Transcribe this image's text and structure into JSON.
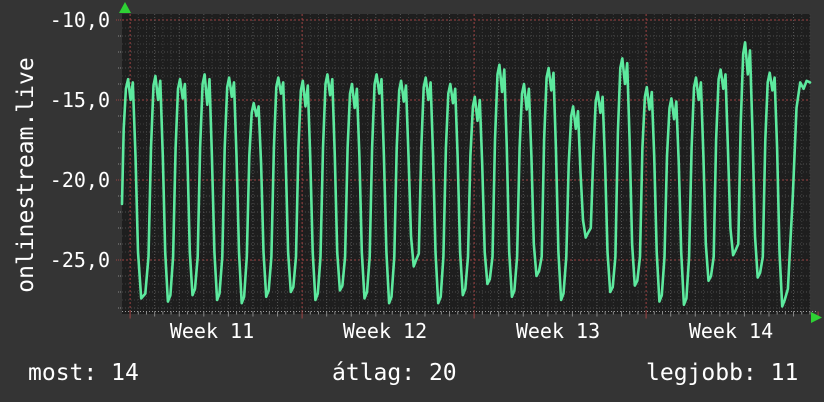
{
  "page": {
    "background": "#343434"
  },
  "chart_data": {
    "type": "line",
    "title": "onlinestream.live",
    "xlabel": "",
    "ylabel": "",
    "grid": true,
    "legend_position": "none",
    "ylim": [
      -28.3,
      -9.6
    ],
    "xlim_days": [
      0,
      28
    ],
    "y_ticks": [
      {
        "value": -10,
        "label": "-10,0"
      },
      {
        "value": -15,
        "label": "-15,0"
      },
      {
        "value": -20,
        "label": "-20,0"
      },
      {
        "value": -25,
        "label": "-25,0"
      }
    ],
    "x_week_labels": [
      "Week 11",
      "Week 12",
      "Week 13",
      "Week 14"
    ],
    "x_week_boundaries_days": [
      0.33,
      7.35,
      14.37,
      21.39,
      28.41
    ],
    "line_color": "#5de99e",
    "axis_arrow_color": "#2ed134",
    "major_grid_color": "#9f4343",
    "minor_grid_color": "#3e3e3e",
    "day_grid_color": "#565656",
    "plot_bg": "#1e1e1e",
    "stats": [
      {
        "label": "most:",
        "value": "14"
      },
      {
        "label": "átlag:",
        "value": "20"
      },
      {
        "label": "legjobb:",
        "value": "11"
      }
    ],
    "series": [
      {
        "name": "onlinestream.live",
        "color": "#5de99e",
        "points": [
          [
            0.0,
            -21.5
          ],
          [
            0.07,
            -16.8
          ],
          [
            0.16,
            -14.3
          ],
          [
            0.25,
            -13.7
          ],
          [
            0.35,
            -15.0
          ],
          [
            0.44,
            -13.9
          ],
          [
            0.55,
            -18.5
          ],
          [
            0.65,
            -24.5
          ],
          [
            0.78,
            -27.4
          ],
          [
            0.95,
            -27.1
          ],
          [
            1.08,
            -24.8
          ],
          [
            1.18,
            -18.0
          ],
          [
            1.28,
            -14.1
          ],
          [
            1.36,
            -13.5
          ],
          [
            1.47,
            -15.0
          ],
          [
            1.56,
            -13.8
          ],
          [
            1.66,
            -18.5
          ],
          [
            1.76,
            -24.5
          ],
          [
            1.87,
            -27.6
          ],
          [
            1.97,
            -27.2
          ],
          [
            2.08,
            -24.8
          ],
          [
            2.18,
            -18.0
          ],
          [
            2.28,
            -14.3
          ],
          [
            2.36,
            -13.7
          ],
          [
            2.47,
            -14.9
          ],
          [
            2.56,
            -14.0
          ],
          [
            2.66,
            -18.5
          ],
          [
            2.76,
            -24.5
          ],
          [
            2.87,
            -27.2
          ],
          [
            2.97,
            -26.8
          ],
          [
            3.08,
            -24.8
          ],
          [
            3.18,
            -18.0
          ],
          [
            3.28,
            -14.0
          ],
          [
            3.36,
            -13.4
          ],
          [
            3.47,
            -15.3
          ],
          [
            3.56,
            -13.7
          ],
          [
            3.66,
            -18.5
          ],
          [
            3.76,
            -24.5
          ],
          [
            3.87,
            -27.5
          ],
          [
            3.97,
            -27.1
          ],
          [
            4.08,
            -24.8
          ],
          [
            4.18,
            -18.0
          ],
          [
            4.28,
            -14.2
          ],
          [
            4.36,
            -13.6
          ],
          [
            4.47,
            -14.8
          ],
          [
            4.56,
            -13.9
          ],
          [
            4.66,
            -18.5
          ],
          [
            4.76,
            -24.5
          ],
          [
            4.87,
            -27.7
          ],
          [
            4.97,
            -27.3
          ],
          [
            5.08,
            -24.8
          ],
          [
            5.18,
            -18.5
          ],
          [
            5.28,
            -15.8
          ],
          [
            5.36,
            -15.2
          ],
          [
            5.47,
            -16.0
          ],
          [
            5.56,
            -15.4
          ],
          [
            5.66,
            -19.0
          ],
          [
            5.76,
            -24.5
          ],
          [
            5.87,
            -27.3
          ],
          [
            5.97,
            -26.9
          ],
          [
            6.08,
            -24.8
          ],
          [
            6.18,
            -18.0
          ],
          [
            6.28,
            -14.2
          ],
          [
            6.36,
            -13.6
          ],
          [
            6.47,
            -14.6
          ],
          [
            6.56,
            -13.9
          ],
          [
            6.66,
            -18.5
          ],
          [
            6.76,
            -24.5
          ],
          [
            6.87,
            -27.0
          ],
          [
            6.97,
            -26.7
          ],
          [
            7.08,
            -24.8
          ],
          [
            7.18,
            -18.0
          ],
          [
            7.28,
            -14.4
          ],
          [
            7.36,
            -13.8
          ],
          [
            7.47,
            -15.4
          ],
          [
            7.56,
            -14.1
          ],
          [
            7.66,
            -18.5
          ],
          [
            7.76,
            -24.5
          ],
          [
            7.87,
            -27.5
          ],
          [
            7.97,
            -27.1
          ],
          [
            8.08,
            -24.8
          ],
          [
            8.18,
            -18.0
          ],
          [
            8.28,
            -14.0
          ],
          [
            8.36,
            -13.4
          ],
          [
            8.47,
            -14.7
          ],
          [
            8.56,
            -13.7
          ],
          [
            8.66,
            -18.5
          ],
          [
            8.76,
            -24.5
          ],
          [
            8.87,
            -26.9
          ],
          [
            8.97,
            -26.6
          ],
          [
            9.08,
            -24.8
          ],
          [
            9.18,
            -18.0
          ],
          [
            9.28,
            -14.6
          ],
          [
            9.36,
            -14.0
          ],
          [
            9.47,
            -15.5
          ],
          [
            9.56,
            -14.3
          ],
          [
            9.66,
            -18.5
          ],
          [
            9.76,
            -24.5
          ],
          [
            9.87,
            -27.4
          ],
          [
            9.97,
            -27.0
          ],
          [
            10.08,
            -24.8
          ],
          [
            10.18,
            -18.0
          ],
          [
            10.28,
            -14.0
          ],
          [
            10.36,
            -13.4
          ],
          [
            10.47,
            -14.6
          ],
          [
            10.56,
            -13.7
          ],
          [
            10.66,
            -18.5
          ],
          [
            10.76,
            -24.5
          ],
          [
            10.87,
            -27.7
          ],
          [
            10.97,
            -27.3
          ],
          [
            11.08,
            -24.8
          ],
          [
            11.18,
            -18.0
          ],
          [
            11.28,
            -14.4
          ],
          [
            11.36,
            -13.8
          ],
          [
            11.47,
            -15.1
          ],
          [
            11.56,
            -14.1
          ],
          [
            11.66,
            -18.5
          ],
          [
            11.76,
            -23.5
          ],
          [
            11.87,
            -25.4
          ],
          [
            11.97,
            -25.0
          ],
          [
            12.08,
            -24.6
          ],
          [
            12.18,
            -18.0
          ],
          [
            12.28,
            -14.2
          ],
          [
            12.36,
            -13.6
          ],
          [
            12.47,
            -15.0
          ],
          [
            12.56,
            -13.9
          ],
          [
            12.66,
            -18.5
          ],
          [
            12.76,
            -24.5
          ],
          [
            12.87,
            -27.7
          ],
          [
            12.97,
            -27.3
          ],
          [
            13.08,
            -24.8
          ],
          [
            13.18,
            -18.0
          ],
          [
            13.28,
            -14.6
          ],
          [
            13.36,
            -14.0
          ],
          [
            13.47,
            -15.2
          ],
          [
            13.56,
            -14.3
          ],
          [
            13.66,
            -18.5
          ],
          [
            13.76,
            -24.5
          ],
          [
            13.87,
            -27.2
          ],
          [
            13.97,
            -26.8
          ],
          [
            14.08,
            -24.8
          ],
          [
            14.18,
            -18.5
          ],
          [
            14.28,
            -15.4
          ],
          [
            14.36,
            -14.8
          ],
          [
            14.47,
            -16.3
          ],
          [
            14.56,
            -15.0
          ],
          [
            14.66,
            -19.0
          ],
          [
            14.76,
            -24.5
          ],
          [
            14.87,
            -26.5
          ],
          [
            14.97,
            -26.2
          ],
          [
            15.08,
            -24.8
          ],
          [
            15.18,
            -17.5
          ],
          [
            15.28,
            -13.4
          ],
          [
            15.36,
            -12.8
          ],
          [
            15.47,
            -14.5
          ],
          [
            15.56,
            -13.1
          ],
          [
            15.66,
            -18.0
          ],
          [
            15.76,
            -24.5
          ],
          [
            15.87,
            -27.3
          ],
          [
            15.97,
            -26.9
          ],
          [
            16.08,
            -24.8
          ],
          [
            16.18,
            -18.0
          ],
          [
            16.28,
            -14.6
          ],
          [
            16.36,
            -14.0
          ],
          [
            16.47,
            -15.6
          ],
          [
            16.56,
            -14.3
          ],
          [
            16.66,
            -18.5
          ],
          [
            16.76,
            -24.0
          ],
          [
            16.87,
            -26.0
          ],
          [
            16.97,
            -25.7
          ],
          [
            17.08,
            -24.8
          ],
          [
            17.18,
            -17.5
          ],
          [
            17.28,
            -13.6
          ],
          [
            17.36,
            -13.0
          ],
          [
            17.47,
            -14.4
          ],
          [
            17.56,
            -13.3
          ],
          [
            17.66,
            -18.0
          ],
          [
            17.76,
            -24.5
          ],
          [
            17.87,
            -27.5
          ],
          [
            17.97,
            -27.1
          ],
          [
            18.08,
            -24.8
          ],
          [
            18.18,
            -19.0
          ],
          [
            18.28,
            -16.0
          ],
          [
            18.36,
            -15.4
          ],
          [
            18.47,
            -16.8
          ],
          [
            18.56,
            -15.7
          ],
          [
            18.66,
            -19.5
          ],
          [
            18.76,
            -22.5
          ],
          [
            18.87,
            -23.6
          ],
          [
            18.97,
            -23.3
          ],
          [
            19.08,
            -23.0
          ],
          [
            19.18,
            -18.5
          ],
          [
            19.28,
            -15.1
          ],
          [
            19.36,
            -14.5
          ],
          [
            19.47,
            -15.8
          ],
          [
            19.56,
            -14.8
          ],
          [
            19.66,
            -19.0
          ],
          [
            19.76,
            -24.5
          ],
          [
            19.87,
            -27.0
          ],
          [
            19.97,
            -26.7
          ],
          [
            20.08,
            -24.8
          ],
          [
            20.18,
            -17.0
          ],
          [
            20.28,
            -13.0
          ],
          [
            20.36,
            -12.4
          ],
          [
            20.47,
            -14.0
          ],
          [
            20.56,
            -12.7
          ],
          [
            20.66,
            -17.5
          ],
          [
            20.76,
            -24.0
          ],
          [
            20.87,
            -26.6
          ],
          [
            20.97,
            -26.3
          ],
          [
            21.08,
            -24.8
          ],
          [
            21.18,
            -18.0
          ],
          [
            21.28,
            -14.8
          ],
          [
            21.36,
            -14.2
          ],
          [
            21.47,
            -15.6
          ],
          [
            21.56,
            -14.5
          ],
          [
            21.66,
            -18.5
          ],
          [
            21.76,
            -24.5
          ],
          [
            21.87,
            -27.6
          ],
          [
            21.97,
            -27.2
          ],
          [
            22.08,
            -24.8
          ],
          [
            22.18,
            -18.5
          ],
          [
            22.28,
            -15.5
          ],
          [
            22.36,
            -14.9
          ],
          [
            22.47,
            -16.2
          ],
          [
            22.56,
            -15.1
          ],
          [
            22.66,
            -19.0
          ],
          [
            22.76,
            -24.5
          ],
          [
            22.87,
            -27.8
          ],
          [
            22.97,
            -27.4
          ],
          [
            23.08,
            -24.8
          ],
          [
            23.18,
            -18.0
          ],
          [
            23.28,
            -14.2
          ],
          [
            23.36,
            -13.6
          ],
          [
            23.47,
            -15.0
          ],
          [
            23.56,
            -13.9
          ],
          [
            23.66,
            -18.5
          ],
          [
            23.76,
            -24.0
          ],
          [
            23.87,
            -26.3
          ],
          [
            23.97,
            -26.0
          ],
          [
            24.08,
            -24.8
          ],
          [
            24.18,
            -17.5
          ],
          [
            24.28,
            -13.7
          ],
          [
            24.36,
            -13.1
          ],
          [
            24.47,
            -14.3
          ],
          [
            24.56,
            -13.4
          ],
          [
            24.66,
            -18.0
          ],
          [
            24.76,
            -23.0
          ],
          [
            24.87,
            -24.7
          ],
          [
            24.97,
            -24.4
          ],
          [
            25.08,
            -24.0
          ],
          [
            25.18,
            -16.5
          ],
          [
            25.28,
            -12.1
          ],
          [
            25.36,
            -11.4
          ],
          [
            25.47,
            -13.4
          ],
          [
            25.56,
            -11.9
          ],
          [
            25.66,
            -17.0
          ],
          [
            25.76,
            -23.5
          ],
          [
            25.87,
            -26.1
          ],
          [
            25.97,
            -25.8
          ],
          [
            26.08,
            -24.8
          ],
          [
            26.18,
            -17.5
          ],
          [
            26.28,
            -13.9
          ],
          [
            26.36,
            -13.3
          ],
          [
            26.47,
            -14.4
          ],
          [
            26.56,
            -13.6
          ],
          [
            26.66,
            -18.0
          ],
          [
            26.76,
            -24.5
          ],
          [
            26.87,
            -27.9
          ],
          [
            26.97,
            -27.5
          ],
          [
            27.1,
            -26.8
          ],
          [
            27.3,
            -21.0
          ],
          [
            27.45,
            -15.5
          ],
          [
            27.6,
            -13.9
          ],
          [
            27.74,
            -14.3
          ],
          [
            27.86,
            -13.8
          ],
          [
            28.0,
            -13.9
          ]
        ]
      }
    ]
  }
}
